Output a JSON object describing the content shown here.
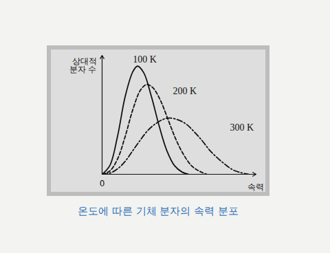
{
  "chart_data": {
    "type": "line",
    "caption": "온도에 따른 기체 분자의 속력 분포",
    "xlabel": "속력",
    "ylabel": "상대적\n분자 수",
    "xlim": [
      0,
      10
    ],
    "ylim": [
      0,
      110
    ],
    "xticks": [
      0
    ],
    "yticks": [],
    "tick_labels": "x",
    "grid": false,
    "series": [
      {
        "name": "100 K",
        "color": "#111111",
        "line_style": "solid",
        "label_at": [
          2.0,
          106
        ],
        "x": [
          0,
          0.5,
          1,
          1.5,
          2,
          2.3,
          2.7,
          3.2,
          3.7,
          4.2,
          4.7,
          5.2,
          5.6
        ],
        "values": [
          0,
          8,
          35,
          72,
          95,
          100,
          94,
          72,
          45,
          22,
          8,
          2,
          0
        ]
      },
      {
        "name": "200 K",
        "color": "#111111",
        "line_style": "dashed",
        "label_at": [
          4.6,
          77
        ],
        "x": [
          0,
          0.5,
          1,
          1.5,
          2,
          2.5,
          2.9,
          3.3,
          3.8,
          4.3,
          4.8,
          5.3,
          5.8,
          6.3,
          6.8
        ],
        "values": [
          0,
          3,
          14,
          35,
          60,
          78,
          83,
          80,
          68,
          50,
          32,
          18,
          8,
          3,
          0
        ]
      },
      {
        "name": "300 K",
        "color": "#111111",
        "line_style": "dashdot",
        "label_at": [
          8.3,
          43
        ],
        "x": [
          0,
          0.5,
          1,
          1.5,
          2,
          2.5,
          3,
          3.5,
          4,
          4.4,
          5,
          5.5,
          6,
          6.5,
          7,
          7.5,
          8,
          8.5,
          9,
          9.5
        ],
        "values": [
          0,
          1,
          5,
          12,
          22,
          32,
          41,
          47,
          51,
          52,
          50,
          46,
          39,
          31,
          22,
          15,
          9,
          4,
          1.5,
          0
        ]
      }
    ]
  }
}
